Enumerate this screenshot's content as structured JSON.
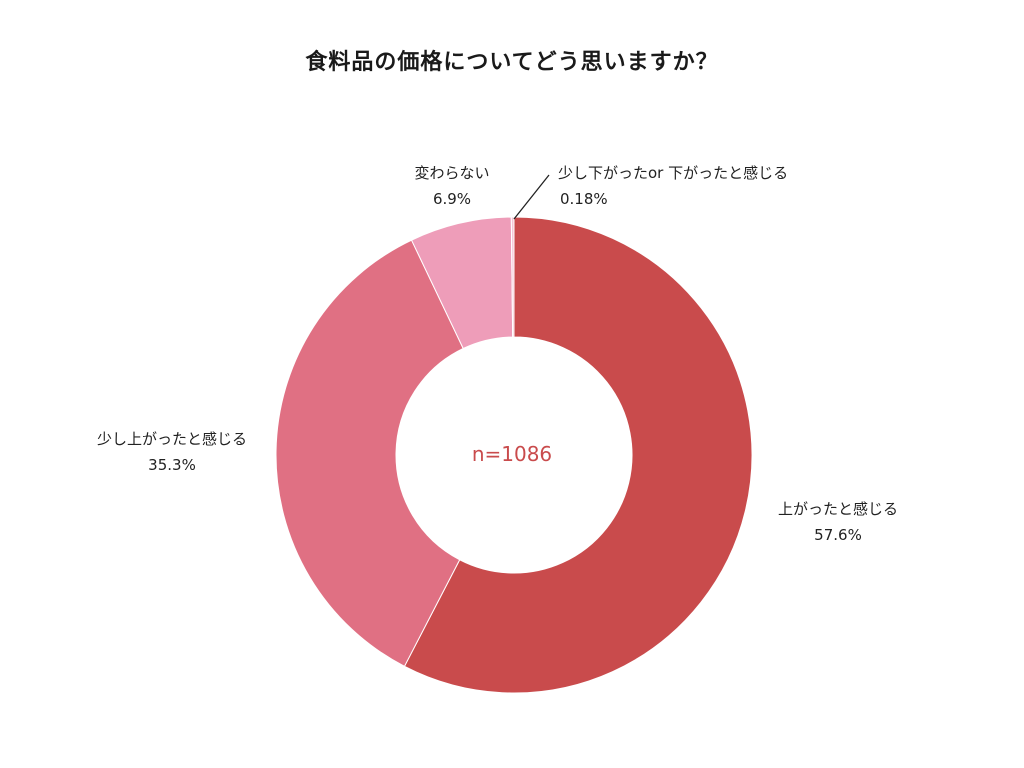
{
  "chart_data": {
    "type": "pie",
    "variant": "donut",
    "title": "食料品の価格についてどう思いますか？",
    "center_text": "n=1086",
    "slices": [
      {
        "label": "上がったと感じる",
        "value": 57.6,
        "display": "57.6%",
        "color": "#c94b4c"
      },
      {
        "label": "少し上がったと感じる",
        "value": 35.3,
        "display": "35.3%",
        "color": "#e07083"
      },
      {
        "label": "変わらない",
        "value": 6.9,
        "display": "6.9%",
        "color": "#ee9db9"
      },
      {
        "label": "少し下がったor 下がったと感じる",
        "value": 0.18,
        "display": "0.18%",
        "color": "#f5c6d6"
      }
    ],
    "colors": {
      "center_text": "#c94b4c"
    }
  }
}
